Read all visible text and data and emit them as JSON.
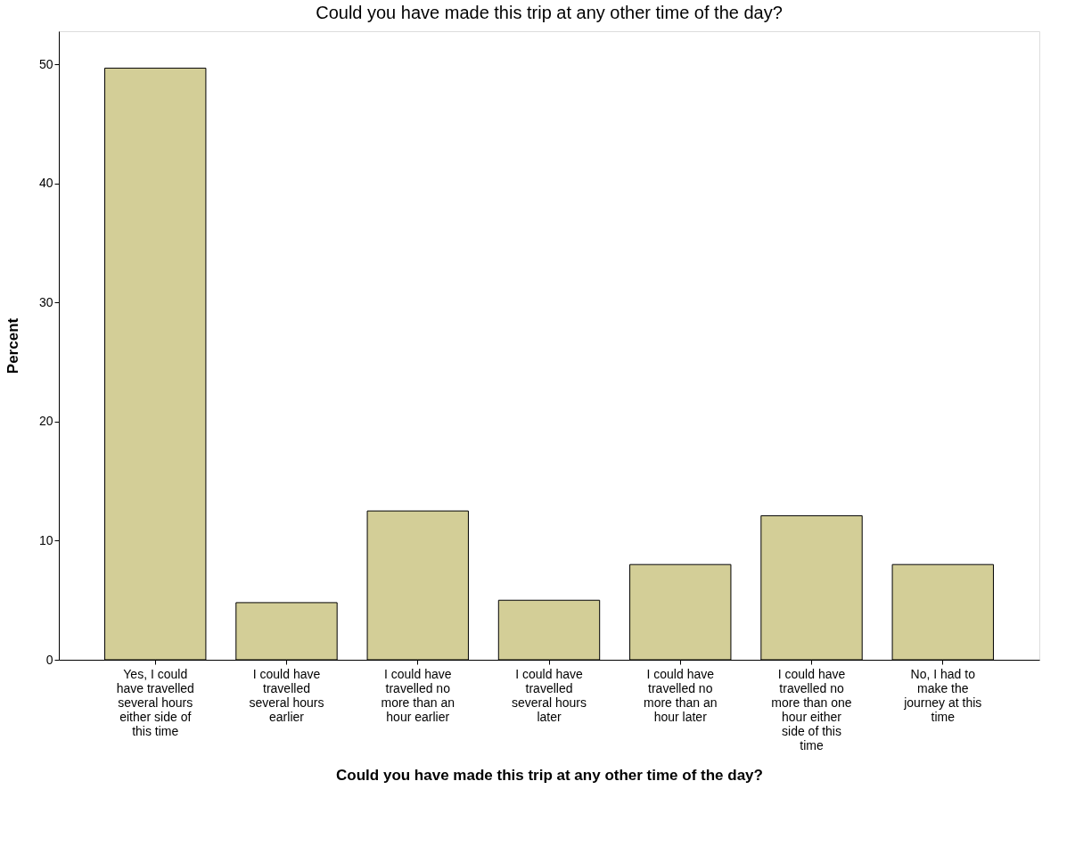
{
  "chart_data": {
    "type": "bar",
    "title": "Could you have made this trip at any other time of the day?",
    "xlabel": "Could you have made this trip at any other time of the day?",
    "ylabel": "Percent",
    "categories": [
      "Yes, I could have travelled several hours either side of this time",
      "I could have travelled several hours earlier",
      "I could have travelled no more than an hour earlier",
      "I could have travelled several hours later",
      "I could have travelled no more than an hour later",
      "I could have travelled no more than one hour either side of this time",
      "No, I had to make the journey at this time"
    ],
    "values": [
      49.7,
      4.8,
      12.5,
      5.0,
      8.0,
      12.1,
      8.0
    ],
    "color": "#d3ce97",
    "ylim": [
      0,
      52.8
    ],
    "yticks": [
      0,
      10,
      20,
      30,
      40,
      50
    ],
    "grid": false
  }
}
